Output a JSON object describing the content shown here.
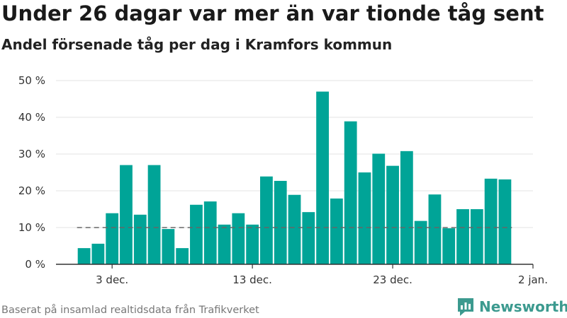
{
  "title": "Under 26 dagar var mer än var tionde tåg sent",
  "subtitle": "Andel försenade tåg per dag i Kramfors kommun",
  "source": "Baserat på insamlad realtidsdata från Trafikverket",
  "brand": {
    "name": "Newsworthy",
    "color": "#3c9a8f",
    "icon": "chart-speech-bubble-icon"
  },
  "chart_data": {
    "type": "bar",
    "title": "Under 26 dagar var mer än var tionde tåg sent",
    "subtitle": "Andel försenade tåg per dag i Kramfors kommun",
    "xlabel": "",
    "ylabel": "",
    "ylim": [
      0,
      50
    ],
    "y_ticks": [
      {
        "value": 0,
        "label": "0 %"
      },
      {
        "value": 10,
        "label": "10 %"
      },
      {
        "value": 20,
        "label": "20 %"
      },
      {
        "value": 30,
        "label": "30 %"
      },
      {
        "value": 40,
        "label": "40 %"
      },
      {
        "value": 50,
        "label": "50 %"
      }
    ],
    "x_ticks": [
      {
        "date": "2019-12-03",
        "label": "3 dec."
      },
      {
        "date": "2019-12-13",
        "label": "13 dec."
      },
      {
        "date": "2019-12-23",
        "label": "23 dec."
      },
      {
        "date": "2020-01-02",
        "label": "2 jan."
      }
    ],
    "x_range": [
      "2019-11-29",
      "2020-01-02"
    ],
    "grid": true,
    "bar_color": "#00a497",
    "reference_line": {
      "value": 10,
      "style": "dashed",
      "color": "#666666"
    },
    "categories": [
      "2019-12-01",
      "2019-12-02",
      "2019-12-03",
      "2019-12-04",
      "2019-12-05",
      "2019-12-06",
      "2019-12-07",
      "2019-12-08",
      "2019-12-09",
      "2019-12-10",
      "2019-12-11",
      "2019-12-12",
      "2019-12-13",
      "2019-12-14",
      "2019-12-15",
      "2019-12-16",
      "2019-12-17",
      "2019-12-18",
      "2019-12-19",
      "2019-12-20",
      "2019-12-21",
      "2019-12-22",
      "2019-12-23",
      "2019-12-24",
      "2019-12-25",
      "2019-12-26",
      "2019-12-27",
      "2019-12-28",
      "2019-12-29",
      "2019-12-30",
      "2019-12-31"
    ],
    "values": [
      4.4,
      5.6,
      13.9,
      27.0,
      13.5,
      27.0,
      9.6,
      4.4,
      16.2,
      17.1,
      10.8,
      13.9,
      10.8,
      23.9,
      22.7,
      18.9,
      14.2,
      47.0,
      17.9,
      38.9,
      25.0,
      30.1,
      26.8,
      30.8,
      11.8,
      19.0,
      9.8,
      15.0,
      15.0,
      23.3,
      23.1
    ]
  }
}
